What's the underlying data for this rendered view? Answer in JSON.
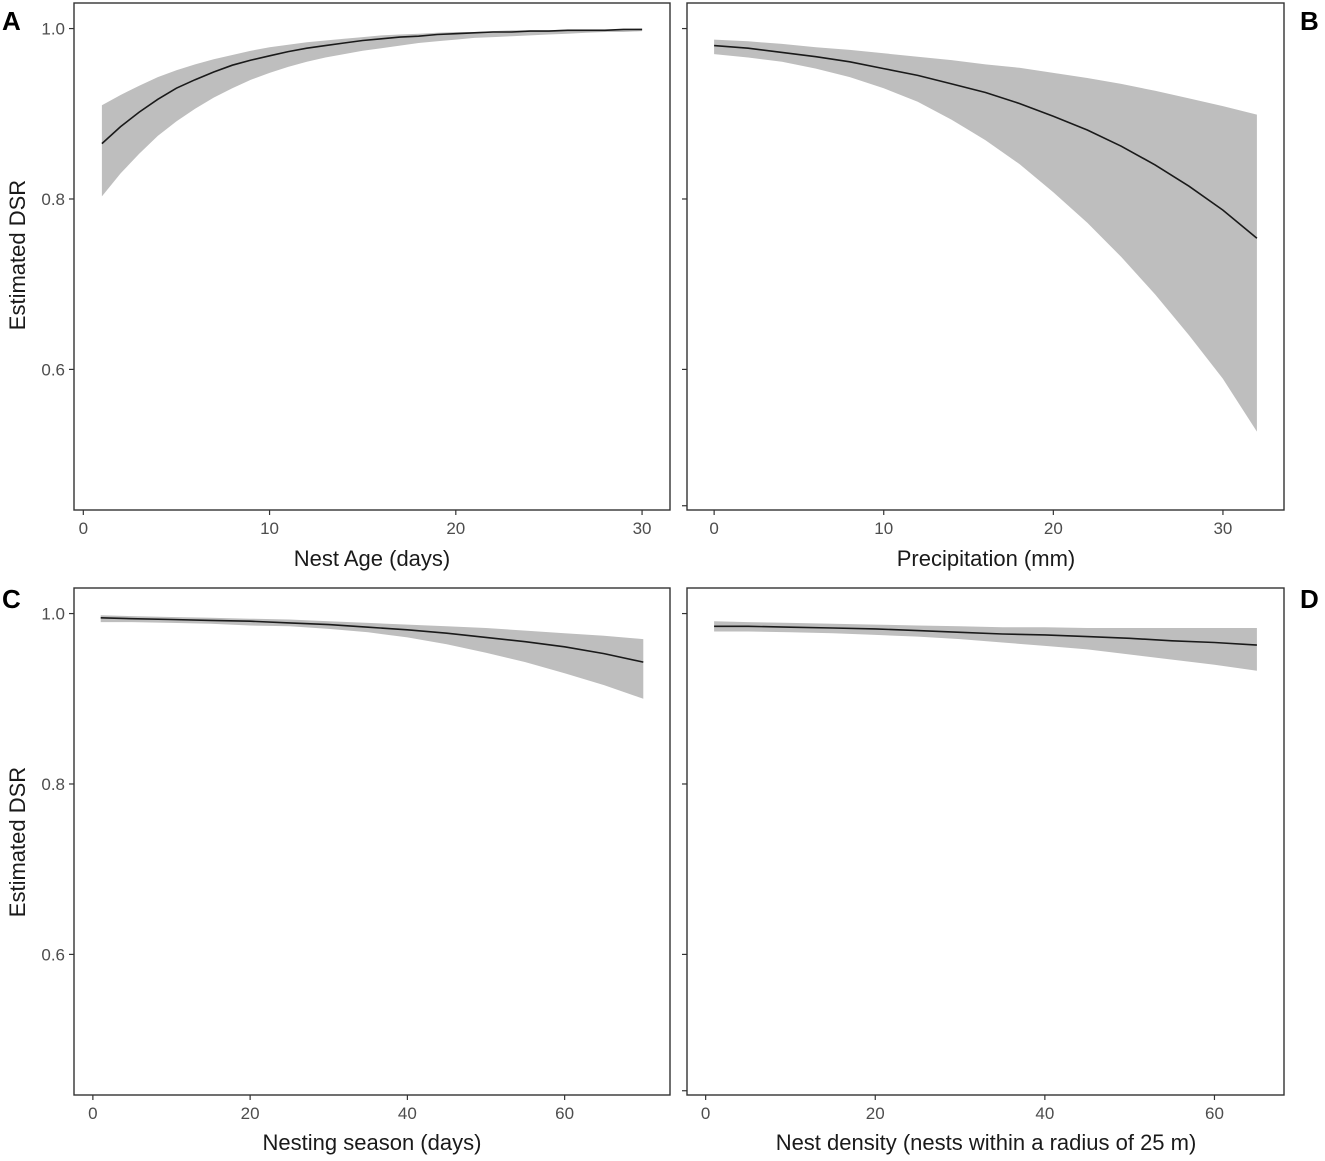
{
  "figure": {
    "y_axis_title": "Estimated DSR",
    "colors": {
      "band": "#bebebe",
      "line": "#1a1a1a",
      "frame": "#333333"
    }
  },
  "chart_data": [
    {
      "panel": "A",
      "type": "line",
      "title": "",
      "xlabel": "Nest Age (days)",
      "ylabel": "Estimated DSR",
      "xlim": [
        -0.5,
        31.5
      ],
      "ylim": [
        0.435,
        1.03
      ],
      "xticks": [
        0,
        10,
        20,
        30
      ],
      "yticks": [
        0.6,
        0.8,
        1.0
      ],
      "ytick_labels": [
        "0.6",
        "0.8",
        "1.0"
      ],
      "grid": false,
      "x": [
        1,
        2,
        3,
        4,
        5,
        6,
        7,
        8,
        9,
        10,
        11,
        12,
        13,
        14,
        15,
        16,
        17,
        18,
        19,
        20,
        21,
        22,
        23,
        24,
        25,
        26,
        27,
        28,
        29,
        30
      ],
      "series": [
        {
          "values": [
            0.865,
            0.885,
            0.902,
            0.917,
            0.93,
            0.94,
            0.949,
            0.957,
            0.963,
            0.968,
            0.973,
            0.977,
            0.98,
            0.983,
            0.986,
            0.988,
            0.99,
            0.991,
            0.993,
            0.994,
            0.995,
            0.996,
            0.996,
            0.997,
            0.997,
            0.998,
            0.998,
            0.998,
            0.999,
            0.999
          ],
          "lower": [
            0.803,
            0.83,
            0.853,
            0.874,
            0.891,
            0.906,
            0.919,
            0.93,
            0.94,
            0.948,
            0.955,
            0.961,
            0.966,
            0.97,
            0.974,
            0.977,
            0.98,
            0.983,
            0.985,
            0.987,
            0.989,
            0.99,
            0.991,
            0.992,
            0.993,
            0.994,
            0.995,
            0.996,
            0.996,
            0.997
          ],
          "upper": [
            0.91,
            0.922,
            0.933,
            0.943,
            0.951,
            0.958,
            0.964,
            0.969,
            0.974,
            0.978,
            0.981,
            0.984,
            0.986,
            0.988,
            0.99,
            0.992,
            0.993,
            0.994,
            0.995,
            0.996,
            0.996,
            0.997,
            0.998,
            0.998,
            0.998,
            0.999,
            0.999,
            0.999,
            0.999,
            1.0
          ]
        }
      ]
    },
    {
      "panel": "B",
      "type": "line",
      "title": "",
      "xlabel": "Precipitation (mm)",
      "ylabel": "",
      "xlim": [
        -1.6,
        33.6
      ],
      "ylim": [
        0.435,
        1.03
      ],
      "xticks": [
        0,
        10,
        20,
        30
      ],
      "yticks": [
        0.6,
        0.8,
        1.0
      ],
      "ytick_labels": [
        "",
        "",
        ""
      ],
      "grid": false,
      "x": [
        0,
        2,
        4,
        6,
        8,
        10,
        12,
        14,
        16,
        18,
        20,
        22,
        24,
        26,
        28,
        30,
        32
      ],
      "series": [
        {
          "values": [
            0.98,
            0.977,
            0.972,
            0.967,
            0.961,
            0.953,
            0.945,
            0.935,
            0.925,
            0.912,
            0.897,
            0.881,
            0.862,
            0.84,
            0.815,
            0.787,
            0.754
          ],
          "lower": [
            0.97,
            0.966,
            0.961,
            0.953,
            0.943,
            0.93,
            0.914,
            0.893,
            0.869,
            0.841,
            0.808,
            0.772,
            0.732,
            0.688,
            0.64,
            0.589,
            0.527
          ],
          "upper": [
            0.987,
            0.985,
            0.982,
            0.978,
            0.975,
            0.971,
            0.967,
            0.963,
            0.958,
            0.954,
            0.948,
            0.942,
            0.935,
            0.927,
            0.918,
            0.909,
            0.899
          ]
        }
      ]
    },
    {
      "panel": "C",
      "type": "line",
      "title": "",
      "xlabel": "Nesting season (days)",
      "ylabel": "Estimated DSR",
      "xlim": [
        -2.4,
        73.4
      ],
      "ylim": [
        0.435,
        1.03
      ],
      "xticks": [
        0,
        20,
        40,
        60
      ],
      "yticks": [
        0.6,
        0.8,
        1.0
      ],
      "ytick_labels": [
        "0.6",
        "0.8",
        "1.0"
      ],
      "grid": false,
      "x": [
        1,
        5,
        10,
        15,
        20,
        25,
        30,
        35,
        40,
        45,
        50,
        55,
        60,
        65,
        70
      ],
      "series": [
        {
          "values": [
            0.995,
            0.994,
            0.993,
            0.992,
            0.991,
            0.989,
            0.987,
            0.984,
            0.981,
            0.977,
            0.972,
            0.967,
            0.961,
            0.953,
            0.943
          ],
          "lower": [
            0.99,
            0.99,
            0.989,
            0.988,
            0.986,
            0.985,
            0.982,
            0.978,
            0.972,
            0.964,
            0.954,
            0.943,
            0.93,
            0.916,
            0.9
          ],
          "upper": [
            0.998,
            0.997,
            0.996,
            0.995,
            0.994,
            0.993,
            0.991,
            0.989,
            0.987,
            0.985,
            0.983,
            0.98,
            0.977,
            0.974,
            0.97
          ]
        }
      ]
    },
    {
      "panel": "D",
      "type": "line",
      "title": "",
      "xlabel": "Nest density (nests within a radius of 25 m)",
      "ylabel": "",
      "xlim": [
        -2.2,
        68.2
      ],
      "ylim": [
        0.435,
        1.03
      ],
      "xticks": [
        0,
        20,
        40,
        60
      ],
      "yticks": [
        0.6,
        0.8,
        1.0
      ],
      "ytick_labels": [
        "",
        "",
        ""
      ],
      "grid": false,
      "x": [
        1,
        5,
        10,
        15,
        20,
        25,
        30,
        35,
        40,
        45,
        50,
        55,
        60,
        65
      ],
      "series": [
        {
          "values": [
            0.985,
            0.985,
            0.984,
            0.983,
            0.982,
            0.98,
            0.978,
            0.976,
            0.975,
            0.973,
            0.971,
            0.968,
            0.966,
            0.963
          ],
          "lower": [
            0.979,
            0.979,
            0.978,
            0.977,
            0.975,
            0.973,
            0.97,
            0.966,
            0.962,
            0.958,
            0.952,
            0.946,
            0.94,
            0.933
          ],
          "upper": [
            0.991,
            0.99,
            0.989,
            0.988,
            0.987,
            0.986,
            0.985,
            0.984,
            0.984,
            0.983,
            0.983,
            0.983,
            0.983,
            0.983
          ]
        }
      ]
    }
  ]
}
